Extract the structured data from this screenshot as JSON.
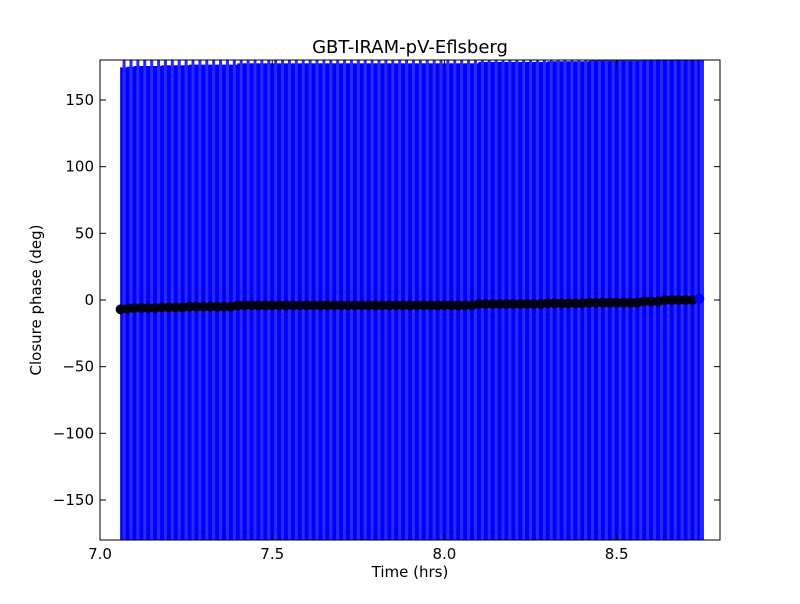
{
  "chart_data": {
    "type": "scatter",
    "title": "GBT-IRAM-pV-Eflsberg",
    "xlabel": "Time (hrs)",
    "ylabel": "Closure phase (deg)",
    "xlim": [
      7.0,
      8.8
    ],
    "ylim": [
      -180,
      180
    ],
    "xticks": [
      "7.0",
      "7.5",
      "8.0",
      "8.5"
    ],
    "xtick_values": [
      7.0,
      7.5,
      8.0,
      8.5
    ],
    "yticks": [
      "−150",
      "−100",
      "−50",
      "0",
      "50",
      "100",
      "150"
    ],
    "ytick_values": [
      -150,
      -100,
      -50,
      0,
      50,
      100,
      150
    ],
    "grid": false,
    "errorbar_color": "#0000ff",
    "marker_color": "#000000",
    "yerr": 180,
    "x": [
      7.06,
      7.08,
      7.1,
      7.12,
      7.14,
      7.16,
      7.18,
      7.2,
      7.22,
      7.24,
      7.26,
      7.28,
      7.3,
      7.32,
      7.34,
      7.36,
      7.38,
      7.4,
      7.42,
      7.44,
      7.46,
      7.48,
      7.5,
      7.52,
      7.54,
      7.56,
      7.58,
      7.6,
      7.62,
      7.64,
      7.66,
      7.68,
      7.7,
      7.72,
      7.74,
      7.76,
      7.78,
      7.8,
      7.82,
      7.84,
      7.86,
      7.88,
      7.9,
      7.92,
      7.94,
      7.96,
      7.98,
      8.0,
      8.02,
      8.04,
      8.06,
      8.08,
      8.1,
      8.12,
      8.14,
      8.16,
      8.18,
      8.2,
      8.22,
      8.24,
      8.26,
      8.28,
      8.3,
      8.32,
      8.34,
      8.36,
      8.38,
      8.4,
      8.42,
      8.44,
      8.46,
      8.48,
      8.5,
      8.52,
      8.54,
      8.56,
      8.58,
      8.6,
      8.62,
      8.64,
      8.66,
      8.68,
      8.7,
      8.72,
      8.74
    ],
    "y": [
      -7,
      -6.5,
      -6,
      -6,
      -6,
      -6,
      -5.5,
      -5.5,
      -5.5,
      -5.5,
      -5,
      -5,
      -5,
      -5,
      -5,
      -5,
      -5,
      -4,
      -4,
      -4,
      -4,
      -4,
      -4,
      -4,
      -4,
      -4,
      -4,
      -4,
      -4,
      -4,
      -4,
      -4,
      -4,
      -4,
      -4,
      -4,
      -4,
      -4,
      -4,
      -4,
      -4,
      -4,
      -4,
      -4,
      -4,
      -4,
      -4,
      -4,
      -4,
      -4,
      -4,
      -4,
      -3,
      -3,
      -3,
      -3,
      -3,
      -3,
      -3,
      -3,
      -3,
      -3,
      -2.5,
      -2.5,
      -2.5,
      -2.5,
      -2.5,
      -2.5,
      -2,
      -2,
      -2,
      -2,
      -2,
      -2,
      -2,
      -2,
      -1,
      -1,
      -1,
      0,
      0,
      0,
      0,
      0,
      1
    ]
  }
}
